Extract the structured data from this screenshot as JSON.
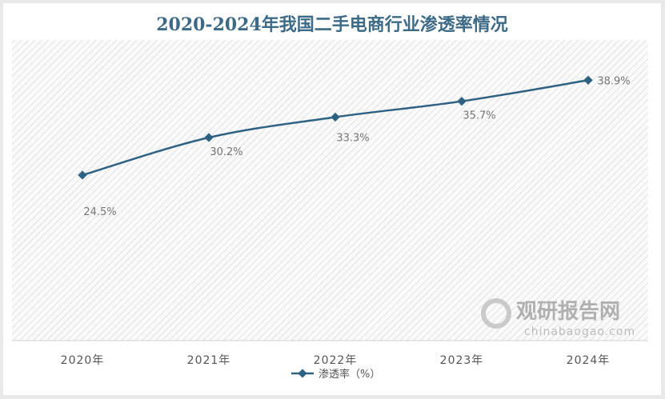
{
  "chart_data": {
    "type": "line",
    "title": "2020-2024年我国二手电商行业渗透率情况",
    "categories": [
      "2020年",
      "2021年",
      "2022年",
      "2023年",
      "2024年"
    ],
    "series": [
      {
        "name": "渗透率（%）",
        "values": [
          24.5,
          30.2,
          33.3,
          35.7,
          38.9
        ],
        "labels": [
          "24.5%",
          "30.2%",
          "33.3%",
          "35.7%",
          "38.9%"
        ],
        "color": "#2f6282"
      }
    ],
    "ylim": [
      0,
      45
    ],
    "grid": false,
    "y_axis_visible": false,
    "legend": "bottom",
    "background": "diagonal-hatch"
  },
  "watermark": {
    "name": "观研报告网",
    "url": "chinabaogao.com"
  }
}
